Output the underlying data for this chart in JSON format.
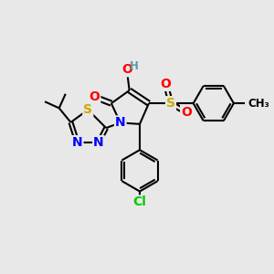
{
  "background_color": "#e8e8e8",
  "atom_colors": {
    "O": "#ff0000",
    "N": "#0000ff",
    "S": "#ccaa00",
    "Cl": "#00cc00",
    "H": "#5a9aaa",
    "C": "#000000"
  },
  "bond_color": "#000000",
  "bond_width": 1.5,
  "font_size_atom": 10,
  "font_size_small": 8.5
}
